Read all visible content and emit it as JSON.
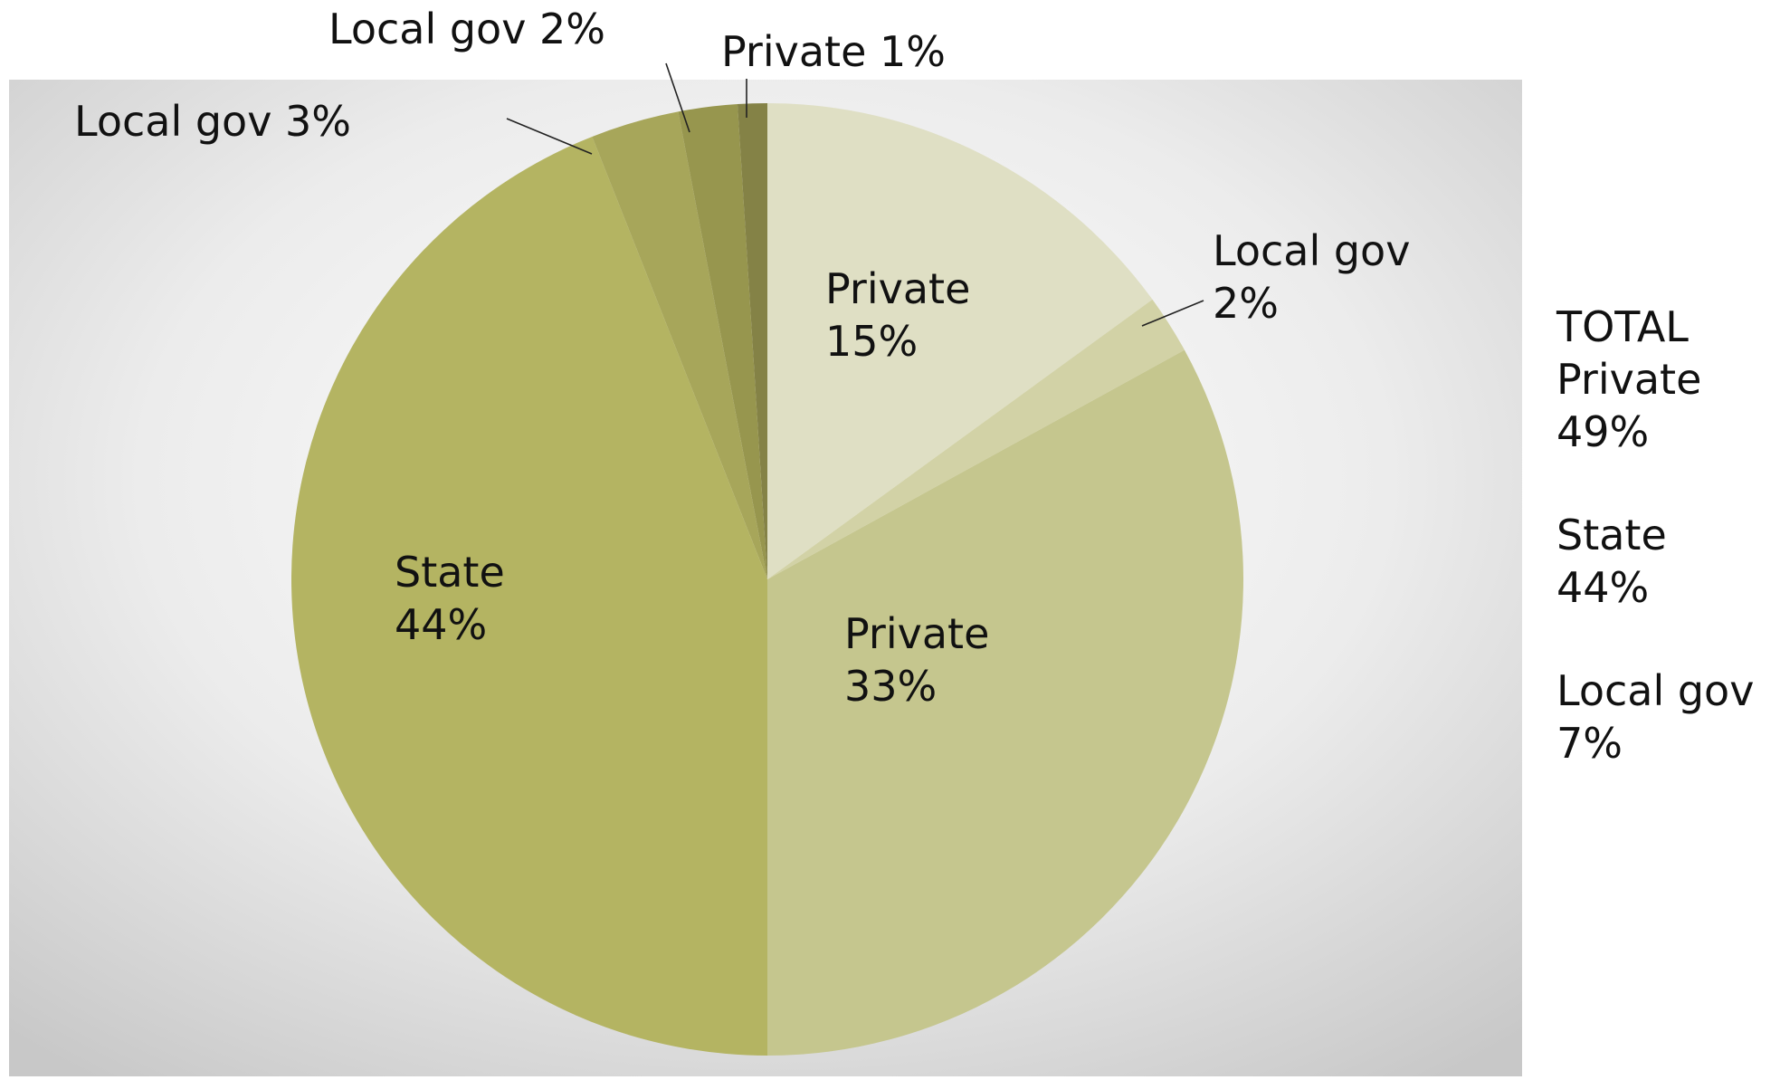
{
  "chart_data": {
    "type": "pie",
    "slices": [
      {
        "label": "Private",
        "value": 15,
        "value_label": "15%",
        "color": "#dfdfc4"
      },
      {
        "label": "Local gov",
        "value": 2,
        "value_label": "2%",
        "color": "#d2d2a6"
      },
      {
        "label": "Private",
        "value": 33,
        "value_label": "33%",
        "color": "#c5c68e"
      },
      {
        "label": "State",
        "value": 44,
        "value_label": "44%",
        "color": "#b4b462"
      },
      {
        "label": "Local gov",
        "value": 3,
        "value_label": "3%",
        "color": "#a7a65a"
      },
      {
        "label": "Local gov",
        "value": 2,
        "value_label": "2%",
        "color": "#97964e"
      },
      {
        "label": "Private",
        "value": 1,
        "value_label": "1%",
        "color": "#848246"
      }
    ],
    "start": "12 o'clock",
    "direction": "clockwise",
    "background": "grey radial gradient"
  },
  "totals": {
    "heading": "TOTAL",
    "items": [
      {
        "label": "Private",
        "value": "49%"
      },
      {
        "label": "State",
        "value": "44%"
      },
      {
        "label": "Local gov",
        "value": "7%"
      }
    ]
  }
}
